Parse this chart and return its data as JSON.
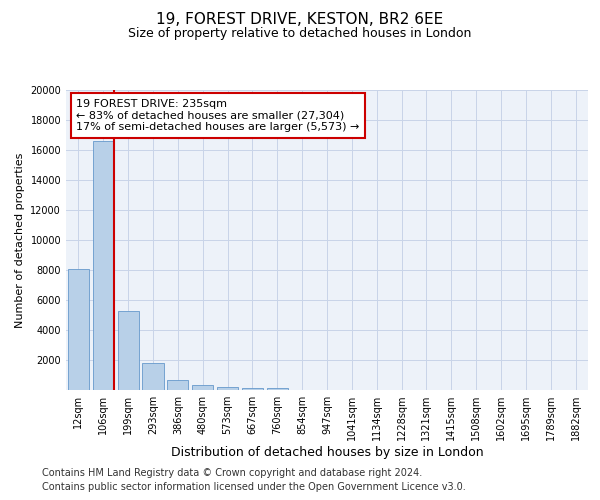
{
  "title": "19, FOREST DRIVE, KESTON, BR2 6EE",
  "subtitle": "Size of property relative to detached houses in London",
  "xlabel": "Distribution of detached houses by size in London",
  "ylabel": "Number of detached properties",
  "categories": [
    "12sqm",
    "106sqm",
    "199sqm",
    "293sqm",
    "386sqm",
    "480sqm",
    "573sqm",
    "667sqm",
    "760sqm",
    "854sqm",
    "947sqm",
    "1041sqm",
    "1134sqm",
    "1228sqm",
    "1321sqm",
    "1415sqm",
    "1508sqm",
    "1602sqm",
    "1695sqm",
    "1789sqm",
    "1882sqm"
  ],
  "values": [
    8100,
    16600,
    5300,
    1800,
    650,
    320,
    180,
    140,
    120,
    0,
    0,
    0,
    0,
    0,
    0,
    0,
    0,
    0,
    0,
    0,
    0
  ],
  "bar_color": "#b8d0e8",
  "bar_edge_color": "#6699cc",
  "vline_color": "#cc0000",
  "annotation_text": "19 FOREST DRIVE: 235sqm\n← 83% of detached houses are smaller (27,304)\n17% of semi-detached houses are larger (5,573) →",
  "annotation_box_color": "#cc0000",
  "ylim": [
    0,
    20000
  ],
  "yticks": [
    0,
    2000,
    4000,
    6000,
    8000,
    10000,
    12000,
    14000,
    16000,
    18000,
    20000
  ],
  "grid_color": "#c8d4e8",
  "footer1": "Contains HM Land Registry data © Crown copyright and database right 2024.",
  "footer2": "Contains public sector information licensed under the Open Government Licence v3.0.",
  "background_color": "#edf2f9",
  "title_fontsize": 11,
  "subtitle_fontsize": 9,
  "xlabel_fontsize": 9,
  "ylabel_fontsize": 8,
  "tick_fontsize": 7,
  "annotation_fontsize": 8,
  "footer_fontsize": 7
}
